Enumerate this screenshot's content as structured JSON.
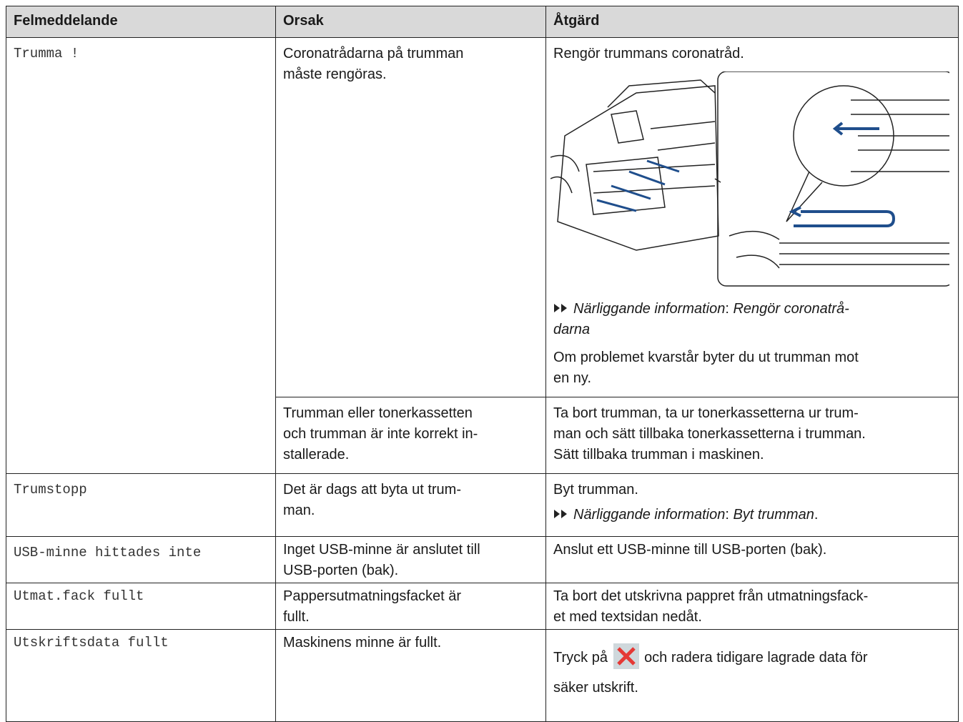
{
  "header": {
    "columns": [
      "Felmeddelande",
      "Orsak",
      "Åtgärd"
    ]
  },
  "rows": [
    {
      "message": "Trumma !",
      "causes": [
        {
          "cause": [
            "Coronatrådarna på trumman",
            "måste rengöras."
          ],
          "action": {
            "intro": "Rengör trummans coronatråd.",
            "related": {
              "label": "Närliggande information",
              "sep": ": ",
              "target": [
                "Rengör coronatrå-",
                "darna"
              ]
            },
            "note": [
              "Om problemet kvarstår byter du ut trumman mot",
              "en ny."
            ]
          }
        },
        {
          "cause": [
            "Trumman eller tonerkassetten",
            "och trumman är inte korrekt in-",
            "stallerade."
          ],
          "action": {
            "lines": [
              "Ta bort trumman, ta ur tonerkassetterna ur trum-",
              "man och sätt tillbaka tonerkassetterna i trumman.",
              "Sätt tillbaka trumman i maskinen."
            ]
          }
        }
      ]
    },
    {
      "message": "Trumstopp",
      "cause": [
        "Det är dags att byta ut trum-",
        "man."
      ],
      "action": {
        "intro": "Byt trumman.",
        "related": {
          "label": "Närliggande information",
          "sep": ": ",
          "target": [
            "Byt trumman"
          ],
          "end": "."
        }
      }
    },
    {
      "message": "USB-minne hittades inte",
      "cause": [
        "Inget USB-minne är anslutet till",
        "USB-porten (bak)."
      ],
      "action": {
        "lines": [
          "Anslut ett USB-minne till USB-porten (bak)."
        ]
      }
    },
    {
      "message": "Utmat.fack fullt",
      "cause": [
        "Pappersutmatningsfacket är",
        "fullt."
      ],
      "action": {
        "lines": [
          "Ta bort det utskrivna pappret från utmatningsfack-",
          "et med textsidan nedåt."
        ]
      }
    },
    {
      "message": "Utskriftsdata fullt",
      "cause": [
        "Maskinens minne är fullt."
      ],
      "action": {
        "before_icon": "Tryck på",
        "after_icon": "och radera tidigare lagrade data för",
        "last_line": "säker utskrift."
      }
    }
  ]
}
